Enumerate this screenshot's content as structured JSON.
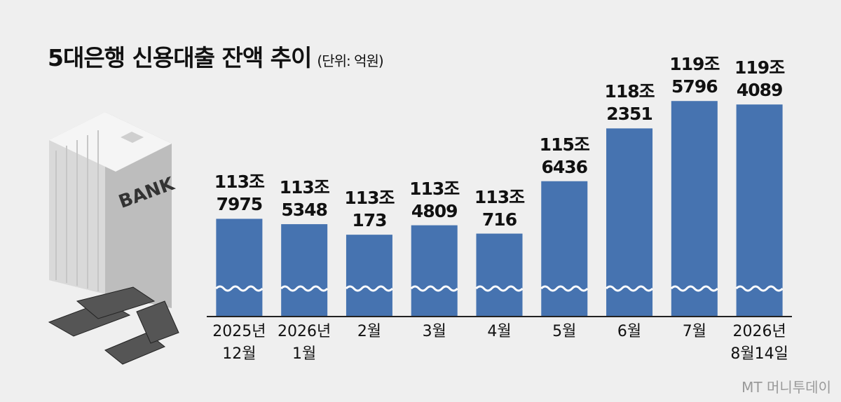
{
  "title": "5대은행 신용대출 잔액 추이",
  "unit": "(단위: 억원)",
  "source": "MT 머니투데이",
  "illustration_label": "BANK",
  "chart_data": {
    "type": "bar",
    "color": "#4673b0",
    "categories": [
      "2025년\n12월",
      "2026년\n1월",
      "2월",
      "3월",
      "4월",
      "5월",
      "6월",
      "7월",
      "2026년\n8월14일"
    ],
    "values": [
      1137975,
      1135348,
      1130173,
      1134809,
      1130716,
      1156436,
      1182351,
      1195796,
      1194089
    ],
    "value_labels": [
      "113조\n7975",
      "113조\n5348",
      "113조\n173",
      "113조\n4809",
      "113조\n716",
      "115조\n6436",
      "118조\n2351",
      "119조\n5796",
      "119조\n4089"
    ],
    "ylim": [
      1090000,
      1200000
    ]
  }
}
